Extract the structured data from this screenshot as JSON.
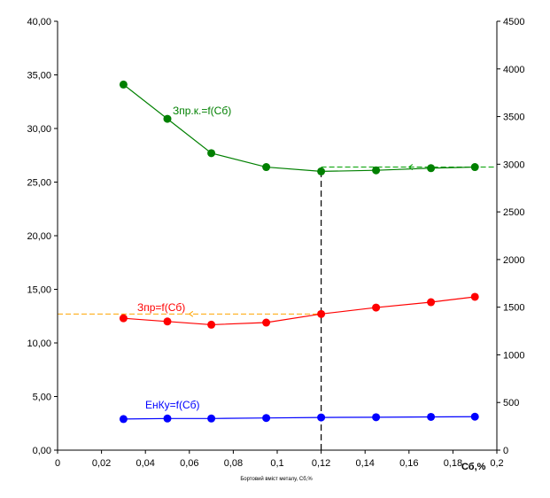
{
  "chart_data": {
    "type": "line",
    "xlabel": "Бортовий вміст металу, Сб,%",
    "x_axis_end_label": "Сб,%",
    "ylabel_left": "",
    "ylabel_right": "",
    "xlim": [
      0,
      0.2
    ],
    "ylim_left": [
      0,
      40
    ],
    "ylim_right": [
      0,
      4500
    ],
    "x_ticks": [
      "0",
      "0,02",
      "0,04",
      "0,06",
      "0,08",
      "0,1",
      "0,12",
      "0,14",
      "0,16",
      "0,18",
      "0,2"
    ],
    "y_left_ticks": [
      "0,00",
      "5,00",
      "10,00",
      "15,00",
      "20,00",
      "25,00",
      "30,00",
      "35,00",
      "40,00"
    ],
    "y_right_ticks": [
      "0",
      "500",
      "1000",
      "1500",
      "2000",
      "2500",
      "3000",
      "3500",
      "4000",
      "4500"
    ],
    "grid": false,
    "series": [
      {
        "name": "Зпр.к.=f(Сб)",
        "color": "#008000",
        "x": [
          0.03,
          0.05,
          0.07,
          0.095,
          0.12,
          0.145,
          0.17,
          0.19
        ],
        "values": [
          34.1,
          30.9,
          27.7,
          26.4,
          26.0,
          26.1,
          26.3,
          26.4
        ]
      },
      {
        "name": "Зпр=f(Сб)",
        "color": "#ff0000",
        "x": [
          0.03,
          0.05,
          0.07,
          0.095,
          0.12,
          0.145,
          0.17,
          0.19
        ],
        "values": [
          12.3,
          12.0,
          11.7,
          11.9,
          12.7,
          13.3,
          13.8,
          14.3
        ]
      },
      {
        "name": "ЕнКу=f(Сб)",
        "color": "#0000ff",
        "x": [
          0.03,
          0.05,
          0.07,
          0.095,
          0.12,
          0.145,
          0.17,
          0.19
        ],
        "values": [
          2.9,
          2.95,
          2.95,
          3.0,
          3.05,
          3.07,
          3.1,
          3.12
        ]
      }
    ],
    "annotations": [
      {
        "type": "vline",
        "x": 0.12,
        "y_from": 0,
        "y_to": 26.0,
        "color": "#000000"
      },
      {
        "type": "hline",
        "y": 12.7,
        "x_from": 0,
        "x_to": 0.12,
        "color": "#ffa500"
      },
      {
        "type": "hline",
        "y": 26.4,
        "x_from": 0.12,
        "x_to": 0.2,
        "color": "#00a000"
      }
    ]
  }
}
